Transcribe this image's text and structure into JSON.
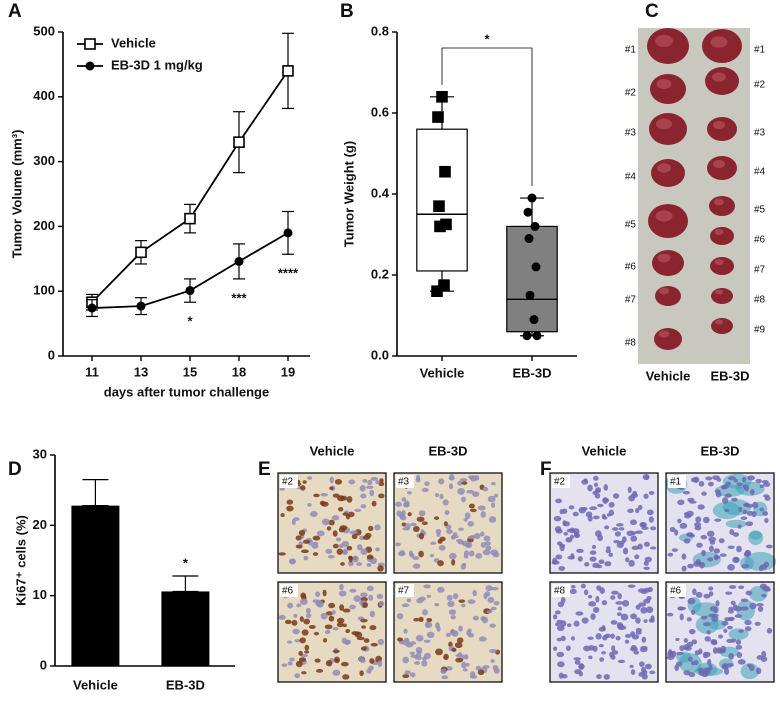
{
  "chart_data": [
    {
      "panel_label": "A",
      "type": "line",
      "categories": [
        "11",
        "13",
        "15",
        "18",
        "19"
      ],
      "x_label": "days after tumor challenge",
      "y_label": "Tumor Volume (mm³)",
      "ylim": [
        0,
        500
      ],
      "yticks": [
        0,
        100,
        200,
        300,
        400,
        500
      ],
      "legend": "upper left",
      "series": [
        {
          "name": "Vehicle",
          "color": "#000000",
          "marker": "square-open",
          "values": [
            83,
            160,
            212,
            330,
            440
          ],
          "errors": [
            12,
            18,
            22,
            47,
            58
          ]
        },
        {
          "name": "EB-3D 1 mg/kg",
          "color": "#000000",
          "marker": "circle",
          "values": [
            74,
            77,
            101,
            146,
            190
          ],
          "errors": [
            13,
            13,
            18,
            27,
            33
          ],
          "annotations": [
            null,
            null,
            "*",
            "***",
            "****"
          ]
        }
      ]
    },
    {
      "panel_label": "B",
      "type": "box",
      "categories": [
        "Vehicle",
        "EB-3D"
      ],
      "y_label": "Tumor Weight (g)",
      "ylim": [
        0,
        0.8
      ],
      "yticks": [
        {
          "value": 0,
          "label": "0.0"
        },
        0.2,
        0.4,
        0.6,
        0.8
      ],
      "significance": "*",
      "boxes": [
        {
          "min": 0.16,
          "q1": 0.21,
          "median": 0.35,
          "q3": 0.56,
          "max": 0.64,
          "color": "#ffffff",
          "marker": "square",
          "points": [
            0.64,
            0.59,
            0.455,
            0.37,
            0.325,
            0.32,
            0.175,
            0.16
          ]
        },
        {
          "min": 0.05,
          "q1": 0.06,
          "median": 0.14,
          "q3": 0.32,
          "max": 0.39,
          "color": "#808080",
          "marker": "circle",
          "points": [
            0.39,
            0.355,
            0.32,
            0.29,
            0.22,
            0.15,
            0.09,
            0.05,
            0.05
          ]
        }
      ]
    },
    {
      "panel_label": "D",
      "type": "bar",
      "categories": [
        "Vehicle",
        "EB-3D"
      ],
      "values": [
        22.8,
        10.6
      ],
      "errors": [
        3.7,
        2.2
      ],
      "annotations": [
        null,
        "*"
      ],
      "color": "#000000",
      "y_label": "Ki67⁺ cells (%)",
      "ylim": [
        0,
        30
      ],
      "yticks": [
        0,
        10,
        20,
        30
      ]
    }
  ],
  "images": [
    {
      "panel_label": "C",
      "columns": [
        "Vehicle",
        "EB-3D"
      ],
      "left_labels": [
        "#1",
        "#2",
        "#3",
        "#4",
        "#5",
        "#6",
        "#7",
        "#8"
      ],
      "right_labels": [
        "#1",
        "#2",
        "#3",
        "#4",
        "#5",
        "#6",
        "#7",
        "#8",
        "#9"
      ]
    },
    {
      "panel_label": "E",
      "columns": [
        "Vehicle",
        "EB-3D"
      ],
      "tiles": [
        [
          "#2",
          "#3"
        ],
        [
          "#6",
          "#7"
        ]
      ]
    },
    {
      "panel_label": "F",
      "columns": [
        "Vehicle",
        "EB-3D"
      ],
      "tiles": [
        [
          "#2",
          "#1"
        ],
        [
          "#8",
          "#6"
        ]
      ]
    }
  ]
}
